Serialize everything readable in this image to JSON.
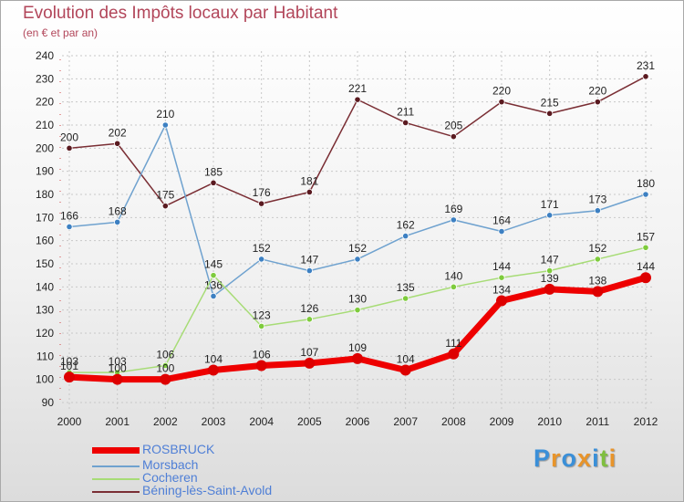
{
  "chart_data": {
    "type": "line",
    "title": "Evolution des Impôts locaux par Habitant",
    "subtitle": "(en € et par an)",
    "xlabel": "",
    "ylabel": "",
    "ylim": [
      90,
      240
    ],
    "yticks": [
      90,
      100,
      110,
      120,
      130,
      140,
      150,
      160,
      170,
      180,
      190,
      200,
      210,
      220,
      230,
      240
    ],
    "grid": true,
    "categories": [
      "2000",
      "2001",
      "2002",
      "2003",
      "2004",
      "2005",
      "2006",
      "2007",
      "2008",
      "2009",
      "2010",
      "2011",
      "2012"
    ],
    "series": [
      {
        "name": "Béning-lès-Saint-Avold",
        "color": "#7a2e34",
        "point_color": "#5a1a20",
        "line_width": "thin",
        "values": [
          200,
          202,
          175,
          185,
          176,
          181,
          221,
          211,
          205,
          220,
          215,
          220,
          231
        ]
      },
      {
        "name": "Morsbach",
        "color": "#6fa2cf",
        "point_color": "#3d80c2",
        "line_width": "thin",
        "values": [
          166,
          168,
          210,
          136,
          152,
          147,
          152,
          162,
          169,
          164,
          171,
          173,
          180
        ]
      },
      {
        "name": "Cocheren",
        "color": "#a7dc76",
        "point_color": "#7ecb3c",
        "line_width": "thin",
        "values": [
          103,
          103,
          106,
          145,
          123,
          126,
          130,
          135,
          140,
          144,
          147,
          152,
          157
        ]
      },
      {
        "name": "ROSBRUCK",
        "color": "#ee0000",
        "point_color": "#dd0000",
        "line_width": "thick",
        "values": [
          101,
          100,
          100,
          104,
          106,
          107,
          109,
          104,
          111,
          134,
          139,
          138,
          144
        ]
      }
    ]
  },
  "legend": {
    "items": [
      {
        "label": "ROSBRUCK",
        "color": "#ee0000",
        "text_color": "#4f7fd6"
      },
      {
        "label": "Morsbach",
        "color": "#6fa2cf",
        "text_color": "#4f7fd6"
      },
      {
        "label": "Cocheren",
        "color": "#a7dc76",
        "text_color": "#4f7fd6"
      },
      {
        "label": "Béning-lès-Saint-Avold",
        "color": "#7a2e34",
        "text_color": "#4f7fd6"
      }
    ]
  },
  "brand": {
    "letters": [
      "P",
      "r",
      "o",
      "x",
      "i",
      "t",
      "i"
    ],
    "colors": [
      "#3a8fd8",
      "#e8942a",
      "#3a8fd8",
      "#e8942a",
      "#3a8fd8",
      "#7fbf3f",
      "#e8942a"
    ]
  }
}
